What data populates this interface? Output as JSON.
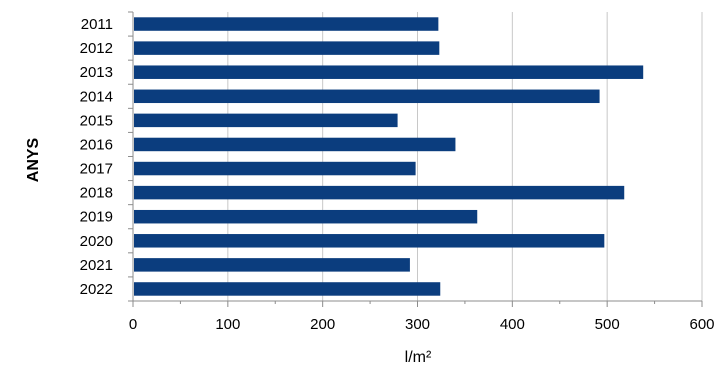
{
  "chart_data": {
    "type": "bar",
    "orientation": "horizontal",
    "categories": [
      "2011",
      "2012",
      "2013",
      "2014",
      "2015",
      "2016",
      "2017",
      "2018",
      "2019",
      "2020",
      "2021",
      "2022"
    ],
    "values": [
      322,
      323,
      538,
      492,
      279,
      340,
      298,
      518,
      363,
      497,
      292,
      324
    ],
    "xlabel": "l/m²",
    "ylabel": "ANYS",
    "xlim": [
      0,
      600
    ],
    "xticks": [
      0,
      100,
      200,
      300,
      400,
      500,
      600
    ],
    "grid": "vertical",
    "legend": "none",
    "bar_color": "#0b3d7e",
    "grid_color": "#c8c8c8",
    "axis_color": "#8c8c8c"
  }
}
